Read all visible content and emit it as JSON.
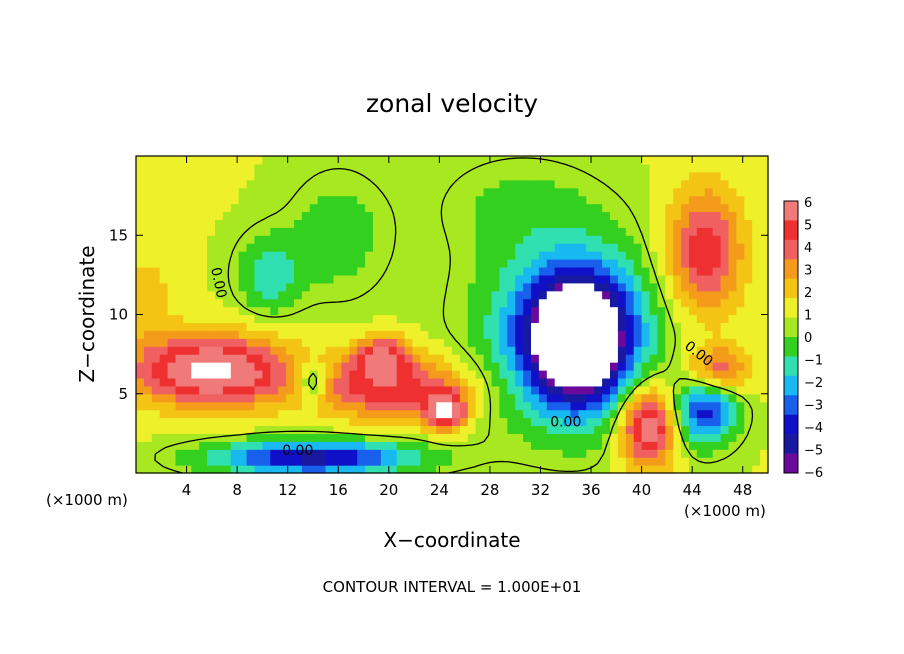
{
  "chart_data": {
    "type": "heatmap",
    "title": "zonal velocity",
    "xlabel": "X−coordinate",
    "ylabel": "Z−coordinate",
    "x_unit": "(×1000 m)",
    "y_unit": "(×1000 m)",
    "xlim": [
      0,
      50
    ],
    "ylim": [
      0,
      20
    ],
    "x_ticks": [
      {
        "value": 4,
        "label": "4"
      },
      {
        "value": 8,
        "label": "8"
      },
      {
        "value": 12,
        "label": "12"
      },
      {
        "value": 16,
        "label": "16"
      },
      {
        "value": 20,
        "label": "20"
      },
      {
        "value": 24,
        "label": "24"
      },
      {
        "value": 28,
        "label": "28"
      },
      {
        "value": 32,
        "label": "32"
      },
      {
        "value": 36,
        "label": "36"
      },
      {
        "value": 40,
        "label": "40"
      },
      {
        "value": 44,
        "label": "44"
      },
      {
        "value": 48,
        "label": "48"
      }
    ],
    "y_ticks": [
      {
        "value": 5,
        "label": "5"
      },
      {
        "value": 10,
        "label": "10"
      },
      {
        "value": 15,
        "label": "15"
      }
    ],
    "colorbar": {
      "min": -6,
      "max": 6,
      "labels": [
        "6",
        "5",
        "4",
        "3",
        "2",
        "1",
        "0",
        "−1",
        "−2",
        "−3",
        "−4",
        "−5",
        "−6"
      ],
      "colors": [
        "#f07a7a",
        "#ee3030",
        "#f06060",
        "#f49b1c",
        "#f4c414",
        "#eef02a",
        "#a8e820",
        "#34d020",
        "#30e0b0",
        "#18b8f0",
        "#1860ec",
        "#1010c8",
        "#1818a0",
        "#6a0a9a"
      ]
    },
    "background_value": 0.5,
    "features": [
      {
        "name": "lower-left-positive-jet",
        "x": 6,
        "z": 6.5,
        "amp": 6.5,
        "sx": 6,
        "sz": 2.2
      },
      {
        "name": "lower-band-positive",
        "x": 20,
        "z": 5.5,
        "amp": 4.5,
        "sx": 6,
        "sz": 2
      },
      {
        "name": "blob-24",
        "x": 24.5,
        "z": 4,
        "amp": 6,
        "sx": 1.6,
        "sz": 1.2
      },
      {
        "name": "blob-20",
        "x": 19.5,
        "z": 7.5,
        "amp": 4,
        "sx": 2,
        "sz": 1.2
      },
      {
        "name": "low-right-positive",
        "x": 40.5,
        "z": 3,
        "amp": 6,
        "sx": 2.2,
        "sz": 2.6
      },
      {
        "name": "right-positive-streak",
        "x": 46,
        "z": 6.5,
        "amp": 4,
        "sx": 2.5,
        "sz": 1.5
      },
      {
        "name": "upper-right-positive",
        "x": 45,
        "z": 14,
        "amp": 4.5,
        "sx": 3,
        "sz": 4
      },
      {
        "name": "upper-left-weak-positive",
        "x": 0.5,
        "z": 11,
        "amp": 1.5,
        "sx": 2.5,
        "sz": 3
      },
      {
        "name": "mid-negative-core",
        "x": 35,
        "z": 8.5,
        "amp": -9,
        "sx": 4,
        "sz": 4
      },
      {
        "name": "mid-negative-halo",
        "x": 34,
        "z": 9,
        "amp": -3.5,
        "sx": 7,
        "sz": 6
      },
      {
        "name": "right-negative",
        "x": 45,
        "z": 4,
        "amp": -5,
        "sx": 2.5,
        "sz": 2.2
      },
      {
        "name": "bottom-negative-band",
        "x": 14,
        "z": 1,
        "amp": -6,
        "sx": 8,
        "sz": 1.1
      },
      {
        "name": "upper-left-negative",
        "x": 10.5,
        "z": 12.5,
        "amp": -2.5,
        "sx": 2.5,
        "sz": 2.5
      },
      {
        "name": "upper-negative",
        "x": 16,
        "z": 15,
        "amp": -1.5,
        "sx": 4,
        "sz": 4
      },
      {
        "name": "blob-14-negative",
        "x": 14,
        "z": 5.8,
        "amp": -3.5,
        "sx": 1.2,
        "sz": 1.3
      },
      {
        "name": "top-weak-negative",
        "x": 30,
        "z": 17,
        "amp": -1,
        "sx": 6,
        "sz": 3
      }
    ],
    "contour_labels": [
      {
        "x": 6.5,
        "z": 12,
        "text": "0.00",
        "rotate": 78
      },
      {
        "x": 12.8,
        "z": 1.4,
        "text": "0.00",
        "rotate": 0
      },
      {
        "x": 34,
        "z": 3.2,
        "text": "0.00",
        "rotate": 0
      },
      {
        "x": 44.5,
        "z": 7.5,
        "text": "0.00",
        "rotate": 38
      }
    ],
    "footer": "CONTOUR INTERVAL = 1.000E+01"
  }
}
